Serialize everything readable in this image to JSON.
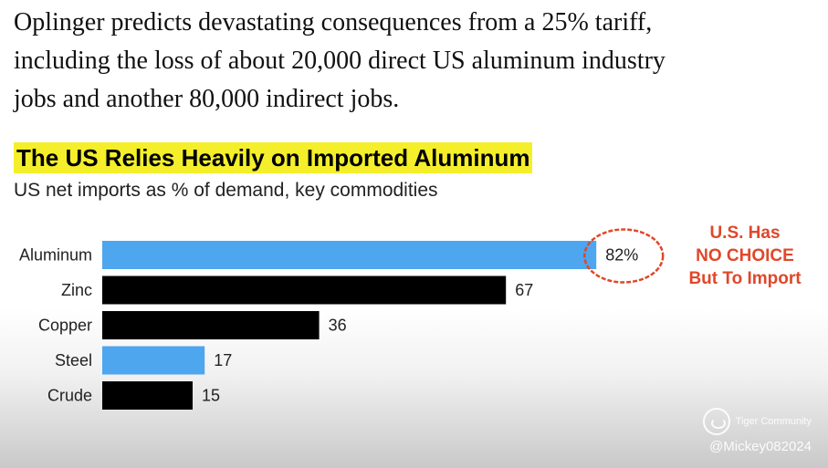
{
  "intro_lines": [
    "Oplinger predicts devastating consequences from a 25% tariff,",
    "including the loss of about 20,000 direct US aluminum industry",
    "jobs and another 80,000 indirect jobs."
  ],
  "annotation_lines": [
    "U.S. Has",
    "NO CHOICE",
    "But To Import"
  ],
  "watermark": {
    "brand": "Tiger Community",
    "handle": "@Mickey082024"
  },
  "colors": {
    "highlight": "#f4ef2a",
    "blue": "#4da6ee",
    "black": "#000000",
    "annotation_red": "#e0472a"
  },
  "chart_data": {
    "type": "bar",
    "orientation": "horizontal",
    "title": "The US Relies Heavily on Imported Aluminum",
    "subtitle": "US net imports as % of demand, key commodities",
    "categories": [
      "Aluminum",
      "Zinc",
      "Copper",
      "Steel",
      "Crude"
    ],
    "values": [
      82,
      67,
      36,
      17,
      15
    ],
    "value_labels": [
      "82%",
      "67",
      "36",
      "17",
      "15"
    ],
    "bar_colors": [
      "#4da6ee",
      "#000000",
      "#000000",
      "#4da6ee",
      "#000000"
    ],
    "xlim": [
      0,
      100
    ],
    "grid": false
  }
}
